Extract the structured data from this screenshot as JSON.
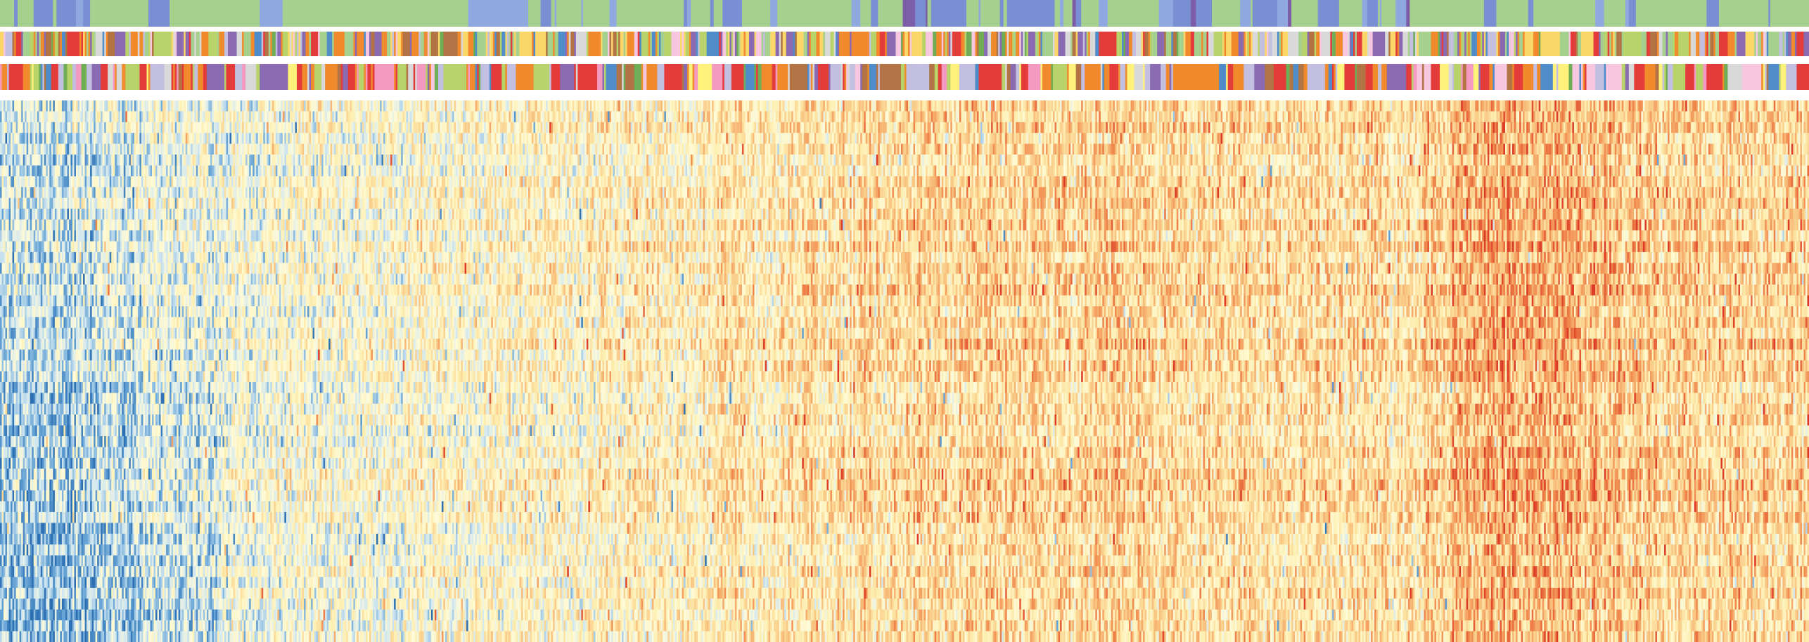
{
  "chart_data": {
    "type": "heatmap",
    "title": "",
    "xlabel": "",
    "ylabel": "",
    "grid": false,
    "legend": "none",
    "n_columns": 1024,
    "n_rows": 50,
    "column_annotation_tracks": [
      {
        "palette": [
          "#a6d08d",
          "#7a8ed4",
          "#8fa8e0",
          "#7b5ea7"
        ],
        "weights": [
          0.72,
          0.16,
          0.08,
          0.04
        ],
        "mean_run_length": 5
      },
      {
        "palette": [
          "#a6d08d",
          "#f08a2c",
          "#b9d36b",
          "#fbd76a",
          "#8a6bb1",
          "#d9d9d9",
          "#f7c6df",
          "#b27444",
          "#e43b3b",
          "#4f8cc9",
          "#c3bfe0",
          "#6fae57"
        ],
        "weights": [
          0.16,
          0.17,
          0.1,
          0.1,
          0.1,
          0.06,
          0.06,
          0.06,
          0.06,
          0.05,
          0.05,
          0.03
        ],
        "mean_run_length": 1.6
      },
      {
        "palette": [
          "#f08a2c",
          "#e43b3b",
          "#c3bfe0",
          "#b9d36b",
          "#f49ac1",
          "#d9d9d9",
          "#b27444",
          "#fff27a",
          "#4f8cc9",
          "#8a6bb1",
          "#6fae57",
          "#f7c6df"
        ],
        "weights": [
          0.16,
          0.13,
          0.13,
          0.1,
          0.09,
          0.08,
          0.07,
          0.06,
          0.05,
          0.05,
          0.04,
          0.04
        ],
        "mean_run_length": 3
      }
    ],
    "heatmap_colormap": [
      "#2c6fb3",
      "#6aa6d6",
      "#cfe6f0",
      "#fffbd8",
      "#fdeeb0",
      "#f9c784",
      "#f08a4e",
      "#dc3a26"
    ],
    "value_range": [
      -1,
      1
    ],
    "column_trend": [
      {
        "x": 0.0,
        "v": -0.34
      },
      {
        "x": 0.04,
        "v": -0.3
      },
      {
        "x": 0.1,
        "v": -0.18
      },
      {
        "x": 0.2,
        "v": -0.06
      },
      {
        "x": 0.3,
        "v": 0.02
      },
      {
        "x": 0.4,
        "v": 0.12
      },
      {
        "x": 0.5,
        "v": 0.26
      },
      {
        "x": 0.6,
        "v": 0.3
      },
      {
        "x": 0.7,
        "v": 0.24
      },
      {
        "x": 0.78,
        "v": 0.2
      },
      {
        "x": 0.81,
        "v": 0.52
      },
      {
        "x": 0.86,
        "v": 0.48
      },
      {
        "x": 0.92,
        "v": 0.33
      },
      {
        "x": 1.0,
        "v": 0.28
      }
    ],
    "noise_level": 0.42,
    "random_seed": 20240517
  }
}
